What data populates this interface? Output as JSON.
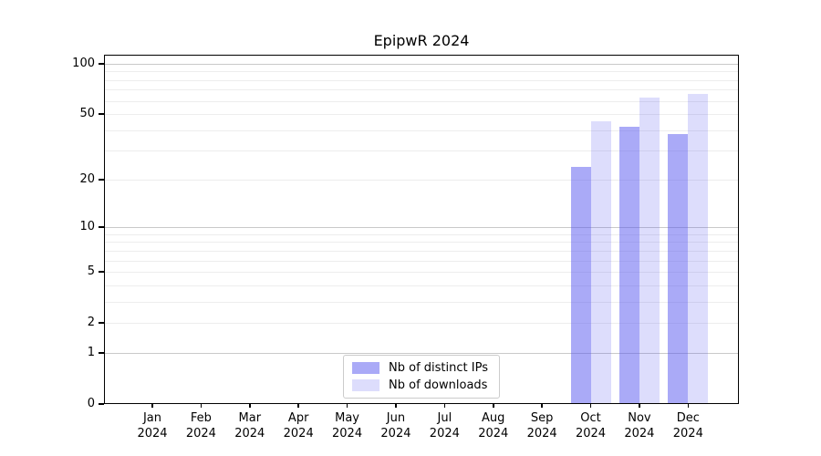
{
  "title": "EpipwR 2024",
  "chart_data": {
    "type": "bar",
    "title": "EpipwR 2024",
    "categories": [
      {
        "month": "Jan",
        "year": "2024"
      },
      {
        "month": "Feb",
        "year": "2024"
      },
      {
        "month": "Mar",
        "year": "2024"
      },
      {
        "month": "Apr",
        "year": "2024"
      },
      {
        "month": "May",
        "year": "2024"
      },
      {
        "month": "Jun",
        "year": "2024"
      },
      {
        "month": "Jul",
        "year": "2024"
      },
      {
        "month": "Aug",
        "year": "2024"
      },
      {
        "month": "Sep",
        "year": "2024"
      },
      {
        "month": "Oct",
        "year": "2024"
      },
      {
        "month": "Nov",
        "year": "2024"
      },
      {
        "month": "Dec",
        "year": "2024"
      }
    ],
    "series": [
      {
        "name": "Nb of distinct IPs",
        "values": [
          0,
          0,
          0,
          0,
          0,
          0,
          0,
          0,
          0,
          24,
          42,
          38
        ],
        "color": "rgba(85,85,240,0.5)"
      },
      {
        "name": "Nb of downloads",
        "values": [
          0,
          0,
          0,
          0,
          0,
          0,
          0,
          0,
          0,
          45,
          63,
          66
        ],
        "color": "rgba(85,85,240,0.2)"
      }
    ],
    "y_scale": "log1p",
    "ylim": [
      0,
      113
    ],
    "y_ticks": [
      0,
      1,
      2,
      5,
      10,
      20,
      50,
      100
    ],
    "y_major_gridlines": [
      1,
      10,
      100
    ],
    "y_minor_gridlines": [
      2,
      3,
      4,
      5,
      6,
      7,
      8,
      9,
      20,
      30,
      40,
      50,
      60,
      70,
      80,
      90
    ],
    "grid": true,
    "legend_position": "lower center"
  },
  "colors": {
    "bar_ips": "rgba(85,85,240,0.5)",
    "bar_downloads": "rgba(85,85,240,0.2)",
    "grid_major": "#c9c9c9",
    "grid_minor": "#ededed",
    "spine": "#000000",
    "legend_border": "#cbcbcb",
    "background": "#ffffff"
  }
}
